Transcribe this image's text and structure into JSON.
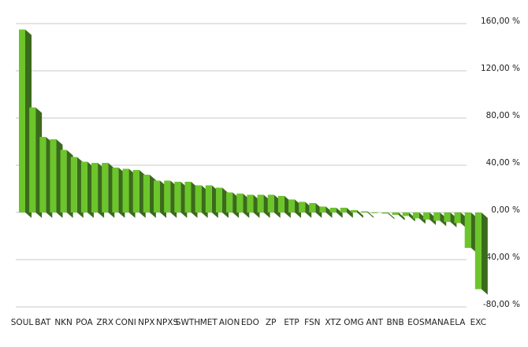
{
  "chart_data": {
    "type": "bar3d",
    "categories": [
      "SOUL",
      null,
      "BAT",
      null,
      "NKN",
      null,
      "POA",
      null,
      "ZRX",
      null,
      "CONI",
      null,
      "NPX",
      null,
      "NPXS",
      null,
      "SWTH",
      null,
      "MET",
      null,
      "AION",
      null,
      "EDO",
      null,
      "ZP",
      null,
      "ETP",
      null,
      "FSN",
      null,
      "XTZ",
      null,
      "OMG",
      null,
      "ANT",
      null,
      "BNB",
      null,
      "EOS",
      null,
      "MANA",
      null,
      "ELA",
      null,
      "EXC"
    ],
    "values": [
      155,
      89,
      64,
      62,
      53,
      47,
      43,
      42,
      42,
      38,
      37,
      36,
      32,
      27,
      27,
      26,
      26,
      23,
      23,
      21,
      17,
      16,
      15,
      15,
      15,
      14,
      11,
      9,
      8,
      5,
      4,
      4,
      2,
      1,
      0,
      -1,
      -2,
      -3,
      -5,
      -6,
      -7,
      -8,
      -9,
      -30,
      -65
    ],
    "color": "#6cc52b",
    "side_color": "#3b6a1c",
    "ylim": [
      -80,
      160
    ],
    "yticks": [
      {
        "value": -80,
        "label": "-80,00 %"
      },
      {
        "value": -40,
        "label": "-40,00 %"
      },
      {
        "value": 0,
        "label": "0,00 %"
      },
      {
        "value": 40,
        "label": "40,00 %"
      },
      {
        "value": 80,
        "label": "80,00 %"
      },
      {
        "value": 120,
        "label": "120,00 %"
      },
      {
        "value": 160,
        "label": "160,00 %"
      }
    ],
    "grid": true
  }
}
